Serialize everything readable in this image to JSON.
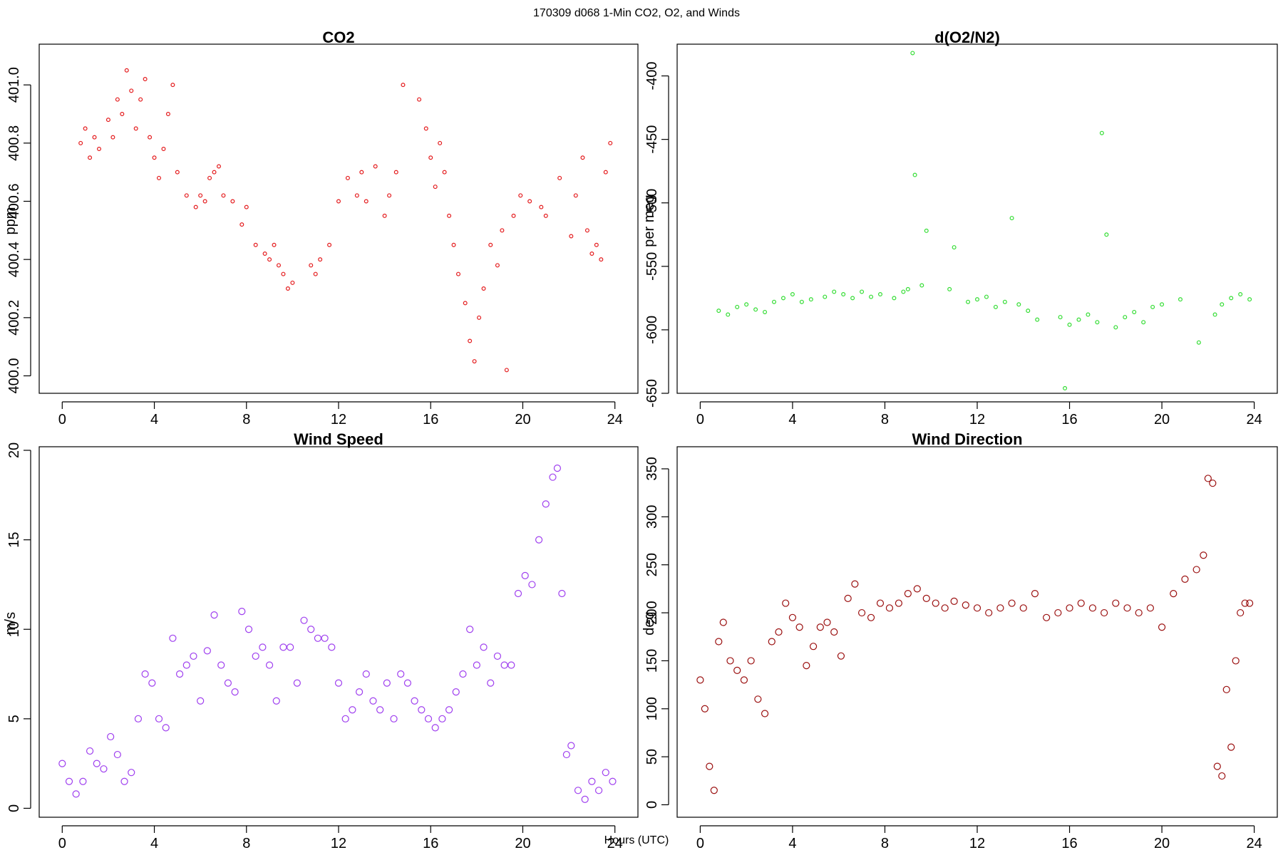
{
  "figure": {
    "title": "170309   d068   1-Min CO2, O2, and Winds",
    "xlabel": "Hours (UTC)"
  },
  "chart_data": [
    {
      "type": "scatter",
      "title": "CO2",
      "xlabel": "",
      "ylabel": "ppm",
      "xlim": [
        -1,
        25
      ],
      "ylim": [
        399.94,
        401.14
      ],
      "xticks": [
        0,
        4,
        8,
        12,
        16,
        20,
        24
      ],
      "yticks": [
        400.0,
        400.2,
        400.4,
        400.6,
        400.8,
        401.0
      ],
      "ytick_labels": [
        "400.0",
        "400.2",
        "400.4",
        "400.6",
        "400.8",
        "401.0"
      ],
      "color": "#e41a1c",
      "series": [
        {
          "x": [
            0.8,
            1.0,
            1.2,
            1.4,
            1.6,
            2.0,
            2.2,
            2.4,
            2.6,
            2.8,
            3.0,
            3.2,
            3.4,
            3.6,
            3.8,
            4.0,
            4.2,
            4.4,
            4.6,
            4.8,
            5.0,
            5.4,
            5.8,
            6.0,
            6.2,
            6.4,
            6.6,
            6.8,
            7.0,
            7.4,
            7.8,
            8.0,
            8.4,
            8.8,
            9.0,
            9.2,
            9.4,
            9.6,
            9.8,
            10.0,
            10.8,
            11.0,
            11.2,
            11.6,
            12.0,
            12.4,
            12.8,
            13.0,
            13.2,
            13.6,
            14.0,
            14.2,
            14.5,
            14.8,
            15.5,
            15.8,
            16.0,
            16.2,
            16.4,
            16.6,
            16.8,
            17.0,
            17.2,
            17.5,
            17.7,
            17.9,
            18.1,
            18.3,
            18.6,
            18.9,
            19.1,
            19.3,
            19.6,
            19.9,
            20.3,
            20.8,
            21.0,
            21.6,
            22.1,
            22.3,
            22.6,
            22.8,
            23.0,
            23.2,
            23.4,
            23.6,
            23.8
          ],
          "y": [
            400.8,
            400.85,
            400.75,
            400.82,
            400.78,
            400.88,
            400.82,
            400.95,
            400.9,
            401.05,
            400.98,
            400.85,
            400.95,
            401.02,
            400.82,
            400.75,
            400.68,
            400.78,
            400.9,
            401.0,
            400.7,
            400.62,
            400.58,
            400.62,
            400.6,
            400.68,
            400.7,
            400.72,
            400.62,
            400.6,
            400.52,
            400.58,
            400.45,
            400.42,
            400.4,
            400.45,
            400.38,
            400.35,
            400.3,
            400.32,
            400.38,
            400.35,
            400.4,
            400.45,
            400.6,
            400.68,
            400.62,
            400.7,
            400.6,
            400.72,
            400.55,
            400.62,
            400.7,
            401.0,
            400.95,
            400.85,
            400.75,
            400.65,
            400.8,
            400.7,
            400.55,
            400.45,
            400.35,
            400.25,
            400.12,
            400.05,
            400.2,
            400.3,
            400.45,
            400.38,
            400.5,
            400.02,
            400.55,
            400.62,
            400.6,
            400.58,
            400.55,
            400.68,
            400.48,
            400.62,
            400.75,
            400.5,
            400.42,
            400.45,
            400.4,
            400.7,
            400.8
          ]
        }
      ]
    },
    {
      "type": "scatter",
      "title": "d(O2/N2)",
      "xlabel": "",
      "ylabel": "per meg",
      "xlim": [
        -1,
        25
      ],
      "ylim": [
        -650,
        -375
      ],
      "xticks": [
        0,
        4,
        8,
        12,
        16,
        20,
        24
      ],
      "yticks": [
        -650,
        -600,
        -550,
        -500,
        -450,
        -400
      ],
      "ytick_labels": [
        "-650",
        "-600",
        "-550",
        "-500",
        "-450",
        "-400"
      ],
      "color": "#33dd33",
      "series": [
        {
          "x": [
            0.8,
            1.2,
            1.6,
            2.0,
            2.4,
            2.8,
            3.2,
            3.6,
            4.0,
            4.4,
            4.8,
            5.4,
            5.8,
            6.2,
            6.6,
            7.0,
            7.4,
            7.8,
            8.4,
            8.8,
            9.0,
            9.2,
            9.3,
            9.6,
            9.8,
            10.8,
            11.0,
            11.6,
            12.0,
            12.4,
            12.8,
            13.2,
            13.5,
            13.8,
            14.2,
            14.6,
            15.6,
            15.8,
            16.0,
            16.4,
            16.8,
            17.2,
            17.4,
            17.6,
            18.0,
            18.4,
            18.8,
            19.2,
            19.6,
            20.0,
            20.8,
            21.6,
            22.3,
            22.6,
            23.0,
            23.4,
            23.8
          ],
          "y": [
            -585,
            -588,
            -582,
            -580,
            -584,
            -586,
            -578,
            -575,
            -572,
            -578,
            -576,
            -574,
            -570,
            -572,
            -575,
            -570,
            -574,
            -572,
            -575,
            -570,
            -568,
            -382,
            -478,
            -565,
            -522,
            -568,
            -535,
            -578,
            -576,
            -574,
            -582,
            -578,
            -512,
            -580,
            -585,
            -592,
            -590,
            -646,
            -596,
            -592,
            -588,
            -594,
            -445,
            -525,
            -598,
            -590,
            -586,
            -594,
            -582,
            -580,
            -576,
            -610,
            -588,
            -580,
            -575,
            -572,
            -576
          ]
        }
      ]
    },
    {
      "type": "scatter",
      "title": "Wind Speed",
      "xlabel": "",
      "ylabel": "m/s",
      "xlim": [
        -1,
        25
      ],
      "ylim": [
        -0.5,
        20.2
      ],
      "xticks": [
        0,
        4,
        8,
        12,
        16,
        20,
        24
      ],
      "yticks": [
        0,
        5,
        10,
        15,
        20
      ],
      "ytick_labels": [
        "0",
        "5",
        "10",
        "15",
        "20"
      ],
      "color": "#9f3fef",
      "series": [
        {
          "x": [
            0.0,
            0.3,
            0.6,
            0.9,
            1.2,
            1.5,
            1.8,
            2.1,
            2.4,
            2.7,
            3.0,
            3.3,
            3.6,
            3.9,
            4.2,
            4.5,
            4.8,
            5.1,
            5.4,
            5.7,
            6.0,
            6.3,
            6.6,
            6.9,
            7.2,
            7.5,
            7.8,
            8.1,
            8.4,
            8.7,
            9.0,
            9.3,
            9.6,
            9.9,
            10.2,
            10.5,
            10.8,
            11.1,
            11.4,
            11.7,
            12.0,
            12.3,
            12.6,
            12.9,
            13.2,
            13.5,
            13.8,
            14.1,
            14.4,
            14.7,
            15.0,
            15.3,
            15.6,
            15.9,
            16.2,
            16.5,
            16.8,
            17.1,
            17.4,
            17.7,
            18.0,
            18.3,
            18.6,
            18.9,
            19.2,
            19.5,
            19.8,
            20.1,
            20.4,
            20.7,
            21.0,
            21.3,
            21.5,
            21.7,
            21.9,
            22.1,
            22.4,
            22.7,
            23.0,
            23.3,
            23.6,
            23.9
          ],
          "y": [
            2.5,
            1.5,
            0.8,
            1.5,
            3.2,
            2.5,
            2.2,
            4.0,
            3.0,
            1.5,
            2.0,
            5.0,
            7.5,
            7.0,
            5.0,
            4.5,
            9.5,
            7.5,
            8.0,
            8.5,
            6.0,
            8.8,
            10.8,
            8.0,
            7.0,
            6.5,
            11.0,
            10.0,
            8.5,
            9.0,
            8.0,
            6.0,
            9.0,
            9.0,
            7.0,
            10.5,
            10.0,
            9.5,
            9.5,
            9.0,
            7.0,
            5.0,
            5.5,
            6.5,
            7.5,
            6.0,
            5.5,
            7.0,
            5.0,
            7.5,
            7.0,
            6.0,
            5.5,
            5.0,
            4.5,
            5.0,
            5.5,
            6.5,
            7.5,
            10.0,
            8.0,
            9.0,
            7.0,
            8.5,
            8.0,
            8.0,
            12.0,
            13.0,
            12.5,
            15.0,
            17.0,
            18.5,
            19.0,
            12.0,
            3.0,
            3.5,
            1.0,
            0.5,
            1.5,
            1.0,
            2.0,
            1.5
          ]
        }
      ]
    },
    {
      "type": "scatter",
      "title": "Wind Direction",
      "xlabel": "",
      "ylabel": "deg",
      "xlim": [
        -1,
        25
      ],
      "ylim": [
        -13,
        373
      ],
      "xticks": [
        0,
        4,
        8,
        12,
        16,
        20,
        24
      ],
      "yticks": [
        0,
        50,
        100,
        150,
        200,
        250,
        300,
        350
      ],
      "ytick_labels": [
        "0",
        "50",
        "100",
        "150",
        "200",
        "250",
        "300",
        "350"
      ],
      "color": "#9b1010",
      "series": [
        {
          "x": [
            0.0,
            0.2,
            0.4,
            0.6,
            0.8,
            1.0,
            1.3,
            1.6,
            1.9,
            2.2,
            2.5,
            2.8,
            3.1,
            3.4,
            3.7,
            4.0,
            4.3,
            4.6,
            4.9,
            5.2,
            5.5,
            5.8,
            6.1,
            6.4,
            6.7,
            7.0,
            7.4,
            7.8,
            8.2,
            8.6,
            9.0,
            9.4,
            9.8,
            10.2,
            10.6,
            11.0,
            11.5,
            12.0,
            12.5,
            13.0,
            13.5,
            14.0,
            14.5,
            15.0,
            15.5,
            16.0,
            16.5,
            17.0,
            17.5,
            18.0,
            18.5,
            19.0,
            19.5,
            20.0,
            20.5,
            21.0,
            21.5,
            21.8,
            22.0,
            22.2,
            22.4,
            22.6,
            22.8,
            23.0,
            23.2,
            23.4,
            23.6,
            23.8
          ],
          "y": [
            130,
            100,
            40,
            15,
            170,
            190,
            150,
            140,
            130,
            150,
            110,
            95,
            170,
            180,
            210,
            195,
            185,
            145,
            165,
            185,
            190,
            180,
            155,
            215,
            230,
            200,
            195,
            210,
            205,
            210,
            220,
            225,
            215,
            210,
            205,
            212,
            208,
            205,
            200,
            205,
            210,
            205,
            220,
            195,
            200,
            205,
            210,
            205,
            200,
            210,
            205,
            200,
            205,
            185,
            220,
            235,
            245,
            260,
            340,
            335,
            40,
            30,
            120,
            60,
            150,
            200,
            210,
            210
          ]
        }
      ]
    }
  ]
}
